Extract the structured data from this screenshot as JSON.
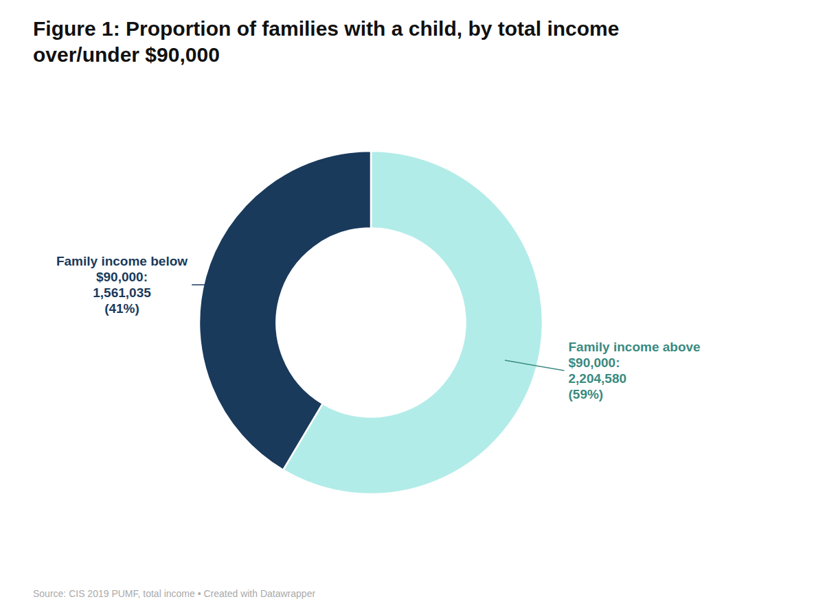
{
  "chart_data": {
    "type": "pie",
    "title": "Figure 1: Proportion of families with a child, by total income\nover/under $90,000",
    "values": [
      2204580,
      1561035
    ],
    "colors": [
      "#b2ece8",
      "#1a3a5c"
    ],
    "annotations": [
      {
        "text": "Family income above\n$90,000:\n2,204,580\n(59%)",
        "color": "#3a8a80"
      },
      {
        "text": "Family income below\n$90,000:\n1,561,035\n(41%)",
        "color": "#1a3a5c"
      }
    ],
    "source": "Source: CIS 2019 PUMF, total income • Created with Datawrapper"
  }
}
